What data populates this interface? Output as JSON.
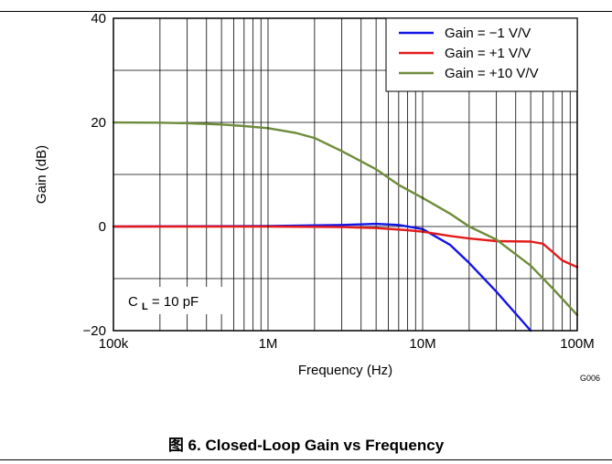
{
  "chart_data": {
    "type": "line",
    "title": "",
    "xlabel": "Frequency (Hz)",
    "ylabel": "Gain (dB)",
    "x_scale": "log",
    "xlim": [
      100000,
      100000000
    ],
    "ylim": [
      -20,
      40
    ],
    "x_ticks": [
      {
        "value": 100000,
        "label": "100k"
      },
      {
        "value": 1000000,
        "label": "1M"
      },
      {
        "value": 10000000,
        "label": "10M"
      },
      {
        "value": 100000000,
        "label": "100M"
      }
    ],
    "y_ticks": [
      {
        "value": -20,
        "label": "−20"
      },
      {
        "value": 0,
        "label": "0"
      },
      {
        "value": 20,
        "label": "20"
      },
      {
        "value": 40,
        "label": "40"
      }
    ],
    "grid": true,
    "legend_position": "top-right",
    "series": [
      {
        "name": "Gain = −1 V/V",
        "color": "#1515e6",
        "points": [
          [
            100000,
            0
          ],
          [
            1000000,
            0.1
          ],
          [
            3000000,
            0.3
          ],
          [
            5000000,
            0.5
          ],
          [
            7000000,
            0.3
          ],
          [
            10000000,
            -0.5
          ],
          [
            15000000,
            -3.5
          ],
          [
            20000000,
            -7
          ],
          [
            30000000,
            -12.5
          ],
          [
            50000000,
            -20
          ]
        ]
      },
      {
        "name": "Gain = +1 V/V",
        "color": "#e51b1b",
        "points": [
          [
            100000,
            0
          ],
          [
            1000000,
            0
          ],
          [
            3000000,
            -0.1
          ],
          [
            5000000,
            -0.3
          ],
          [
            8000000,
            -0.7
          ],
          [
            10000000,
            -1
          ],
          [
            15000000,
            -1.8
          ],
          [
            20000000,
            -2.3
          ],
          [
            30000000,
            -2.8
          ],
          [
            50000000,
            -2.9
          ],
          [
            60000000,
            -3.3
          ],
          [
            70000000,
            -5
          ],
          [
            80000000,
            -6.5
          ],
          [
            100000000,
            -7.8
          ]
        ]
      },
      {
        "name": "Gain = +10 V/V",
        "color": "#6e8c3a",
        "points": [
          [
            100000,
            20
          ],
          [
            200000,
            19.95
          ],
          [
            300000,
            19.85
          ],
          [
            500000,
            19.6
          ],
          [
            700000,
            19.3
          ],
          [
            1000000,
            18.9
          ],
          [
            1500000,
            18
          ],
          [
            2000000,
            17
          ],
          [
            3000000,
            14.5
          ],
          [
            5000000,
            11
          ],
          [
            7000000,
            8
          ],
          [
            10000000,
            5.5
          ],
          [
            15000000,
            2.5
          ],
          [
            20000000,
            0
          ],
          [
            30000000,
            -2.5
          ],
          [
            50000000,
            -7.5
          ],
          [
            70000000,
            -12
          ],
          [
            100000000,
            -17
          ]
        ]
      }
    ],
    "annotation": {
      "main": "C",
      "sub": "L",
      "rest": " = 10 pF"
    },
    "figure_id": "G006",
    "caption": "图 6. Closed-Loop Gain vs Frequency",
    "colors": {
      "grid": "#000000",
      "frame": "#000000"
    }
  }
}
